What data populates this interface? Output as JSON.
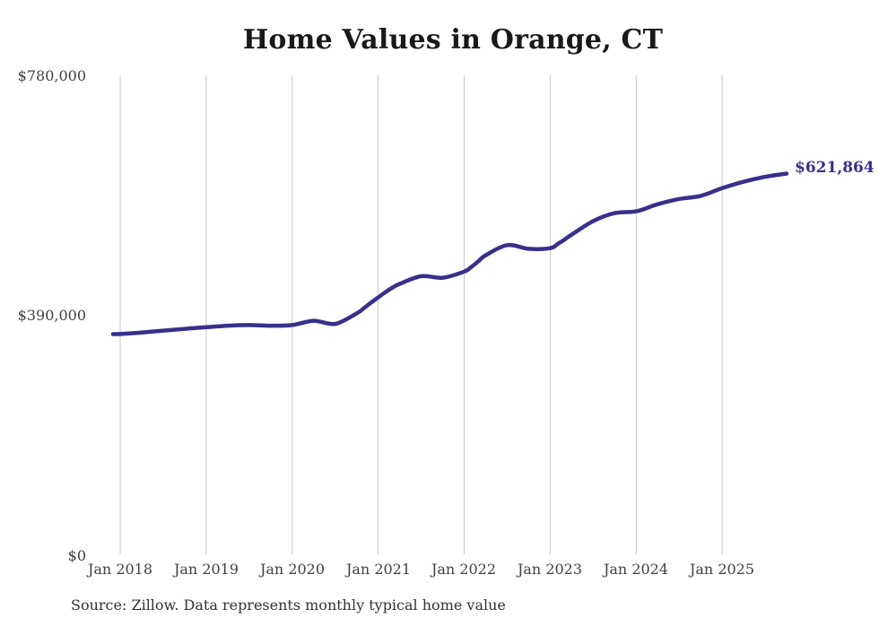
{
  "source_note": "Source: Zillow. Data represents monthly typical home value",
  "colors": {
    "line": "#38308c",
    "grid": "#c9c9c9",
    "title_text": "#191919",
    "axis_text": "#414141",
    "source_text": "#333333",
    "end_label_text": "#38308c",
    "background": "#ffffff"
  },
  "chart_data": {
    "type": "line",
    "title": "Home Values in Orange, CT",
    "xlabel": "",
    "ylabel": "",
    "ylim": [
      0,
      780000
    ],
    "grid": "vertical-only",
    "legend": "none",
    "x_ticks": [
      "Jan 2018",
      "Jan 2019",
      "Jan 2020",
      "Jan 2021",
      "Jan 2022",
      "Jan 2023",
      "Jan 2024",
      "Jan 2025"
    ],
    "y_ticks": [
      {
        "label": "$780,000",
        "value": 780000
      },
      {
        "label": "$390,000",
        "value": 390000
      },
      {
        "label": "$0",
        "value": 0
      }
    ],
    "end_annotation": {
      "label": "$621,864",
      "value": 621864,
      "date": "2025-10"
    },
    "series": [
      {
        "name": "Monthly typical home value",
        "color": "#38308c",
        "points": [
          {
            "date": "2017-12",
            "value": 360800
          },
          {
            "date": "2018-01",
            "value": 361000
          },
          {
            "date": "2018-04",
            "value": 363500
          },
          {
            "date": "2018-07",
            "value": 366500
          },
          {
            "date": "2018-10",
            "value": 369500
          },
          {
            "date": "2019-01",
            "value": 372000
          },
          {
            "date": "2019-04",
            "value": 374500
          },
          {
            "date": "2019-07",
            "value": 375500
          },
          {
            "date": "2019-10",
            "value": 374500
          },
          {
            "date": "2020-01",
            "value": 375500
          },
          {
            "date": "2020-04",
            "value": 382500
          },
          {
            "date": "2020-07",
            "value": 377500
          },
          {
            "date": "2020-10",
            "value": 394500
          },
          {
            "date": "2020-11",
            "value": 403000
          },
          {
            "date": "2020-12",
            "value": 412000
          },
          {
            "date": "2021-01",
            "value": 420500
          },
          {
            "date": "2021-02",
            "value": 429000
          },
          {
            "date": "2021-03",
            "value": 436500
          },
          {
            "date": "2021-04",
            "value": 442500
          },
          {
            "date": "2021-07",
            "value": 455000
          },
          {
            "date": "2021-10",
            "value": 452500
          },
          {
            "date": "2022-01",
            "value": 462500
          },
          {
            "date": "2022-02",
            "value": 470000
          },
          {
            "date": "2022-03",
            "value": 479500
          },
          {
            "date": "2022-04",
            "value": 489000
          },
          {
            "date": "2022-07",
            "value": 505500
          },
          {
            "date": "2022-10",
            "value": 499500
          },
          {
            "date": "2023-01",
            "value": 500500
          },
          {
            "date": "2023-02",
            "value": 507000
          },
          {
            "date": "2023-03",
            "value": 514500
          },
          {
            "date": "2023-04",
            "value": 522500
          },
          {
            "date": "2023-07",
            "value": 544500
          },
          {
            "date": "2023-10",
            "value": 557500
          },
          {
            "date": "2024-01",
            "value": 560500
          },
          {
            "date": "2024-04",
            "value": 572000
          },
          {
            "date": "2024-07",
            "value": 580500
          },
          {
            "date": "2024-10",
            "value": 585500
          },
          {
            "date": "2025-01",
            "value": 598000
          },
          {
            "date": "2025-04",
            "value": 608500
          },
          {
            "date": "2025-07",
            "value": 616500
          },
          {
            "date": "2025-10",
            "value": 621864
          }
        ]
      }
    ]
  }
}
